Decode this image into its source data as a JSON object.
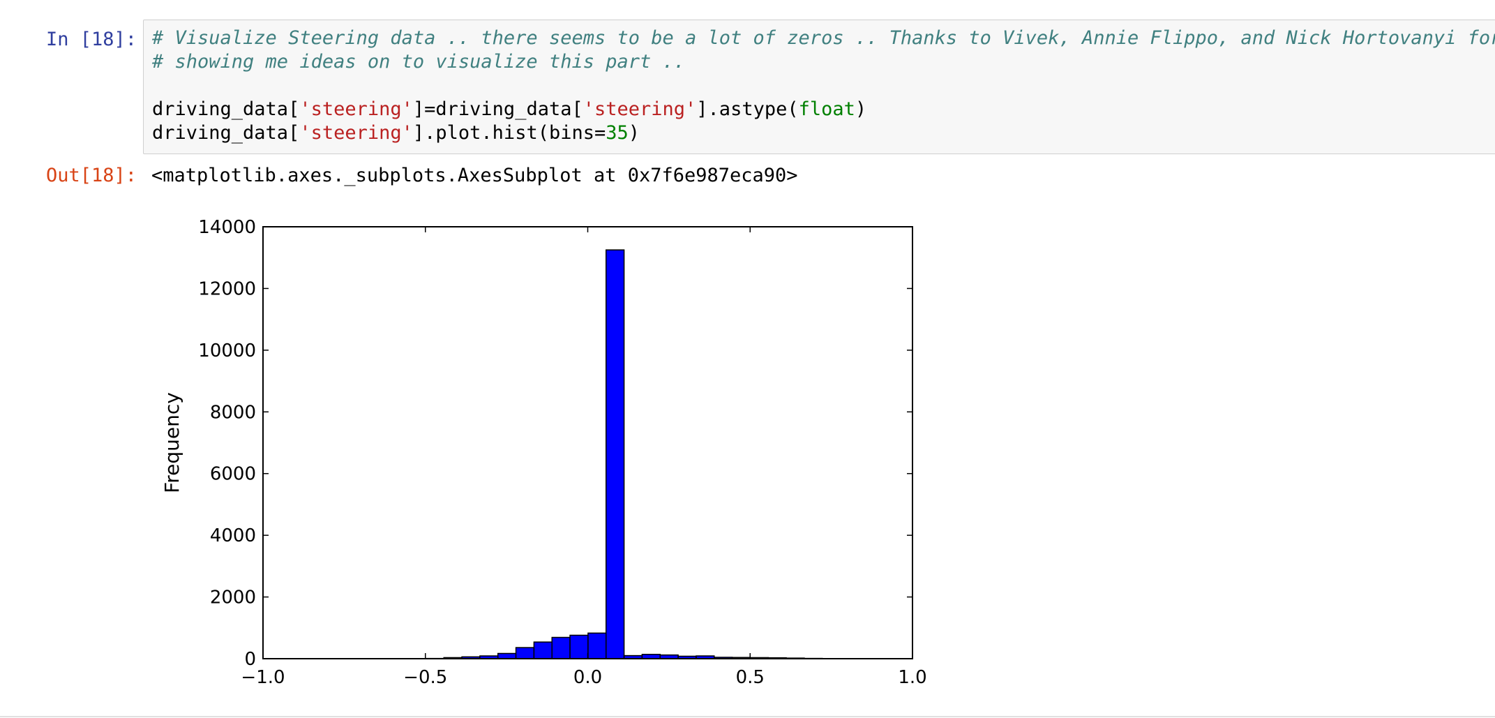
{
  "cell": {
    "in_prompt": "In [18]:",
    "out_prompt": "Out[18]:",
    "code": {
      "comment_line1": "# Visualize Steering data .. there seems to be a lot of zeros .. Thanks to Vivek, Annie Flippo, and Nick Hortovanyi for",
      "comment_line2": "# showing me ideas on to visualize this part ..",
      "line3_a": "driving_data[",
      "line3_str1": "'steering'",
      "line3_b": "]=driving_data[",
      "line3_str2": "'steering'",
      "line3_c": "].astype(",
      "line3_builtin": "float",
      "line3_d": ")",
      "line4_a": "driving_data[",
      "line4_str": "'steering'",
      "line4_b": "].plot.hist(bins=",
      "line4_num": "35",
      "line4_c": ")"
    },
    "output_text": "<matplotlib.axes._subplots.AxesSubplot at 0x7f6e987eca90>"
  },
  "colors": {
    "bar_fill": "#0000ff",
    "bar_edge": "#000000",
    "in_prompt": "#303f9f",
    "out_prompt": "#d84315"
  },
  "chart_data": {
    "type": "bar",
    "title": "",
    "xlabel": "",
    "ylabel": "Frequency",
    "xlim": [
      -1.0,
      1.0
    ],
    "ylim": [
      0,
      14000
    ],
    "x_ticks": [
      -1.0,
      -0.5,
      0.0,
      0.5,
      1.0
    ],
    "x_tick_labels": [
      "−1.0",
      "−0.5",
      "0.0",
      "0.5",
      "1.0"
    ],
    "y_ticks": [
      0,
      2000,
      4000,
      6000,
      8000,
      10000,
      12000,
      14000
    ],
    "y_tick_labels": [
      "0",
      "2000",
      "4000",
      "6000",
      "8000",
      "10000",
      "12000",
      "14000"
    ],
    "bins": 35,
    "bin_range": [
      -0.9426,
      0.9999
    ],
    "values": [
      1,
      0,
      1,
      0,
      2,
      1,
      2,
      2,
      8,
      35,
      60,
      90,
      170,
      360,
      540,
      690,
      760,
      830,
      13250,
      100,
      140,
      120,
      80,
      90,
      45,
      40,
      35,
      30,
      20,
      10,
      5,
      4,
      3,
      2,
      1
    ],
    "grid": false,
    "legend": "none"
  }
}
